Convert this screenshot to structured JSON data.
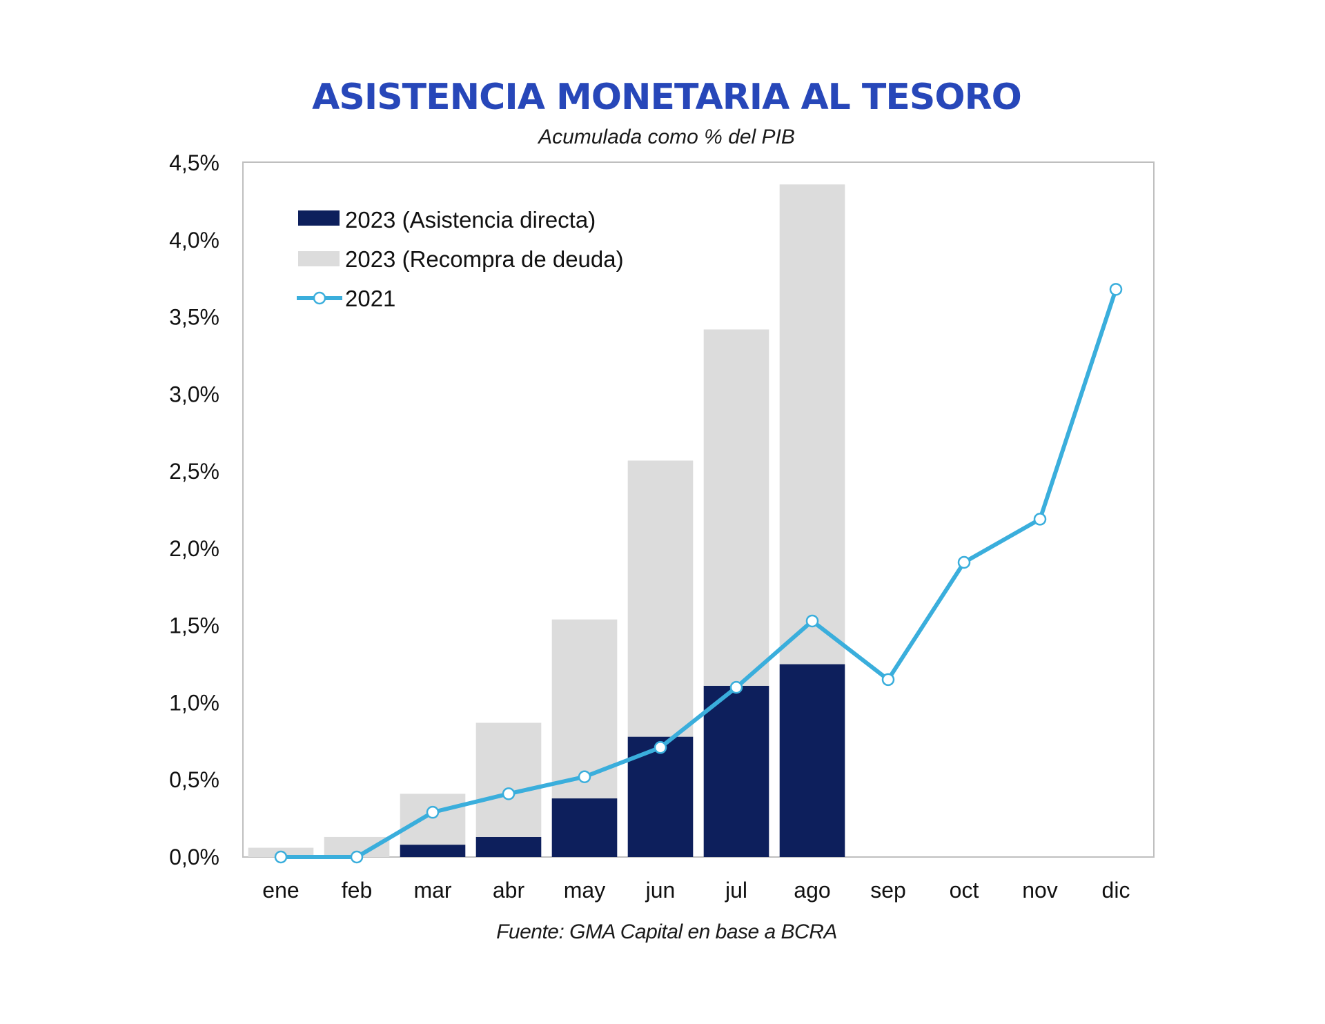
{
  "chart_data": {
    "type": "bar",
    "title": "ASISTENCIA MONETARIA AL TESORO",
    "subtitle": "Acumulada como % del PIB",
    "source": "Fuente: GMA Capital en base a BCRA",
    "categories": [
      "ene",
      "feb",
      "mar",
      "abr",
      "may",
      "jun",
      "jul",
      "ago",
      "sep",
      "oct",
      "nov",
      "dic"
    ],
    "ylim": [
      0,
      4.5
    ],
    "yticks": [
      {
        "value": 0.0,
        "label": "0,0%"
      },
      {
        "value": 0.5,
        "label": "0,5%"
      },
      {
        "value": 1.0,
        "label": "1,0%"
      },
      {
        "value": 1.5,
        "label": "1,5%"
      },
      {
        "value": 2.0,
        "label": "2,0%"
      },
      {
        "value": 2.5,
        "label": "2,5%"
      },
      {
        "value": 3.0,
        "label": "3,0%"
      },
      {
        "value": 3.5,
        "label": "3,5%"
      },
      {
        "value": 4.0,
        "label": "4,0%"
      },
      {
        "value": 4.5,
        "label": "4,5%"
      }
    ],
    "stacked": true,
    "legend_position": "top-left",
    "grid": false,
    "series": [
      {
        "name": "2023 (Asistencia directa)",
        "kind": "bar",
        "color": "#0d1f5c",
        "values": [
          0.0,
          0.0,
          0.08,
          0.13,
          0.38,
          0.78,
          1.11,
          1.25,
          null,
          null,
          null,
          null
        ]
      },
      {
        "name": "2023 (Recompra de deuda)",
        "kind": "bar",
        "color": "#dcdcdc",
        "values": [
          0.06,
          0.13,
          0.33,
          0.74,
          1.16,
          1.79,
          2.31,
          3.11,
          null,
          null,
          null,
          null
        ]
      },
      {
        "name": "2021",
        "kind": "line",
        "color": "#3aaedc",
        "values": [
          0.0,
          0.0,
          0.29,
          0.41,
          0.52,
          0.71,
          1.1,
          1.53,
          1.15,
          1.91,
          2.19,
          3.68
        ]
      }
    ]
  }
}
